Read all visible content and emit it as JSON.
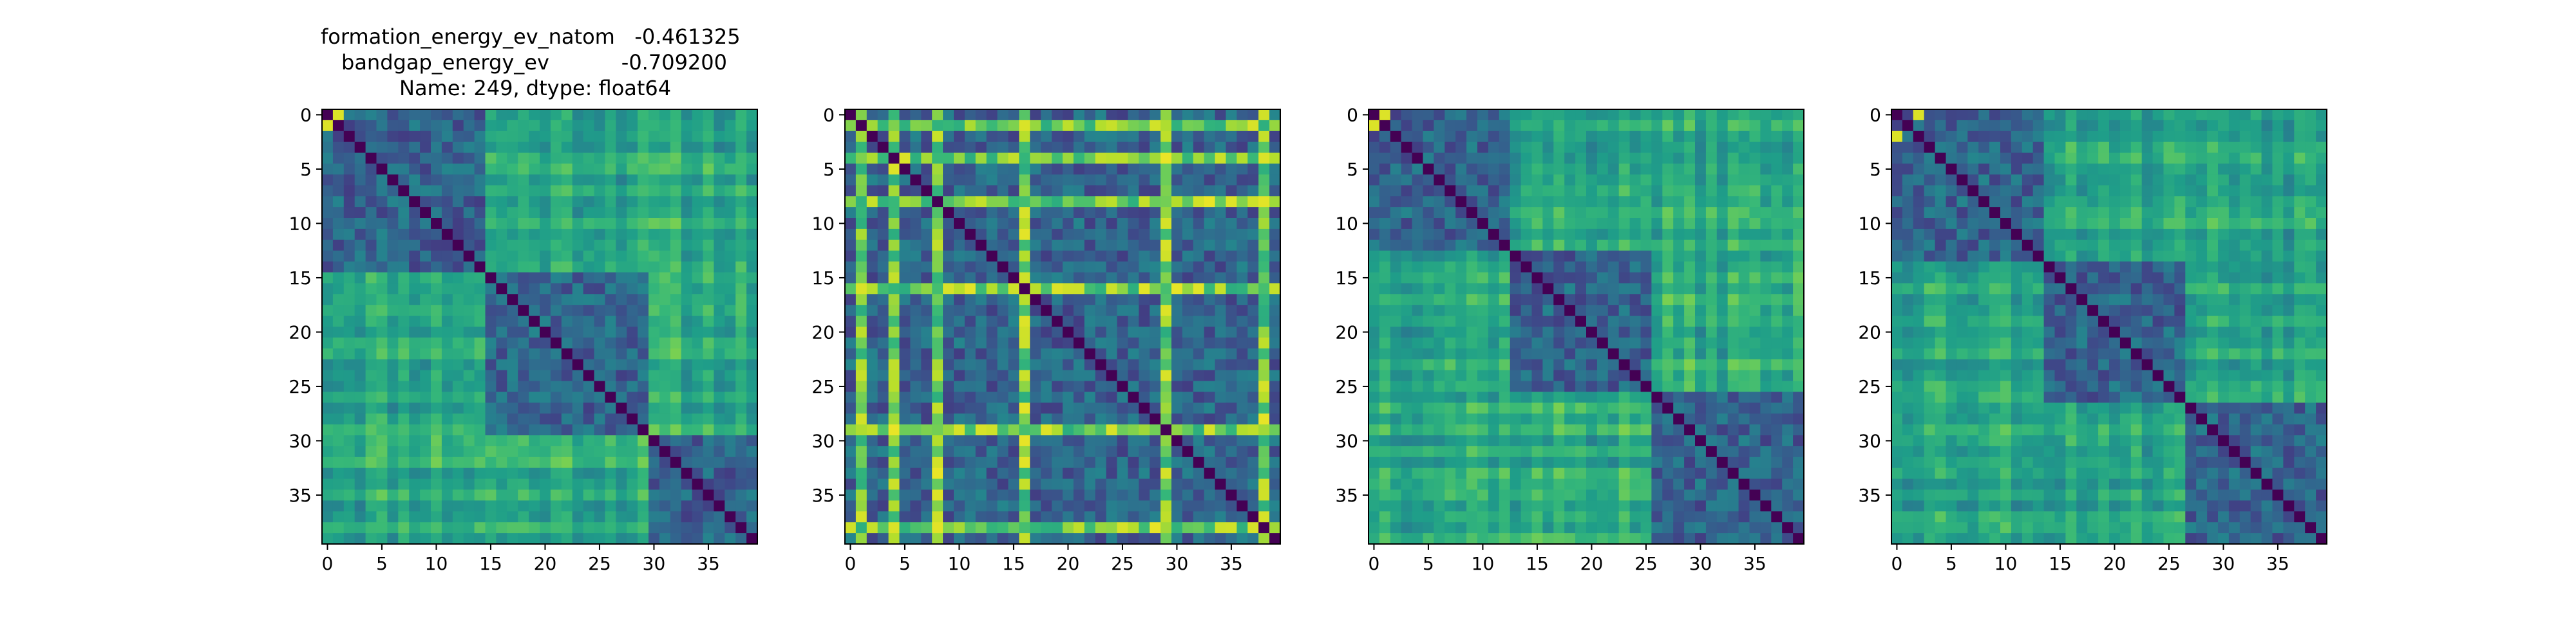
{
  "title_lines": [
    "formation_energy_ev_natom   -0.461325",
    "bandgap_energy_ev           -0.709200",
    "Name: 249, dtype: float64"
  ],
  "colormap": "viridis",
  "chart_data": [
    {
      "type": "heatmap",
      "n": 40,
      "xlim": [
        0,
        39
      ],
      "ylim": [
        0,
        39
      ],
      "xticks": [
        0,
        5,
        10,
        15,
        20,
        25,
        30,
        35
      ],
      "yticks": [
        0,
        5,
        10,
        15,
        20,
        25,
        30,
        35
      ],
      "blocks": [
        [
          0,
          15
        ],
        [
          15,
          30
        ],
        [
          30,
          40
        ]
      ],
      "strong_pairs": [
        [
          0,
          1
        ]
      ],
      "cross_strength": 0.72,
      "seed": 11
    },
    {
      "type": "heatmap",
      "n": 40,
      "xlim": [
        0,
        39
      ],
      "ylim": [
        0,
        39
      ],
      "xticks": [
        0,
        5,
        10,
        15,
        20,
        25,
        30,
        35
      ],
      "yticks": [
        0,
        5,
        10,
        15,
        20,
        25,
        30,
        35
      ],
      "blocks": [
        [
          0,
          40
        ]
      ],
      "bright_bands": [
        1,
        4,
        8,
        16,
        29,
        38
      ],
      "cross_strength": 0.5,
      "seed": 23
    },
    {
      "type": "heatmap",
      "n": 40,
      "xlim": [
        0,
        39
      ],
      "ylim": [
        0,
        39
      ],
      "xticks": [
        0,
        5,
        10,
        15,
        20,
        25,
        30,
        35
      ],
      "yticks": [
        0,
        5,
        10,
        15,
        20,
        25,
        30,
        35
      ],
      "blocks": [
        [
          0,
          13
        ],
        [
          13,
          26
        ],
        [
          26,
          40
        ]
      ],
      "strong_pairs": [
        [
          0,
          1
        ]
      ],
      "cross_strength": 0.72,
      "seed": 37
    },
    {
      "type": "heatmap",
      "n": 40,
      "xlim": [
        0,
        39
      ],
      "ylim": [
        0,
        39
      ],
      "xticks": [
        0,
        5,
        10,
        15,
        20,
        25,
        30,
        35
      ],
      "yticks": [
        0,
        5,
        10,
        15,
        20,
        25,
        30,
        35
      ],
      "blocks": [
        [
          0,
          14
        ],
        [
          14,
          27
        ],
        [
          27,
          40
        ]
      ],
      "strong_pairs": [
        [
          0,
          2
        ]
      ],
      "cross_strength": 0.72,
      "seed": 53
    }
  ]
}
